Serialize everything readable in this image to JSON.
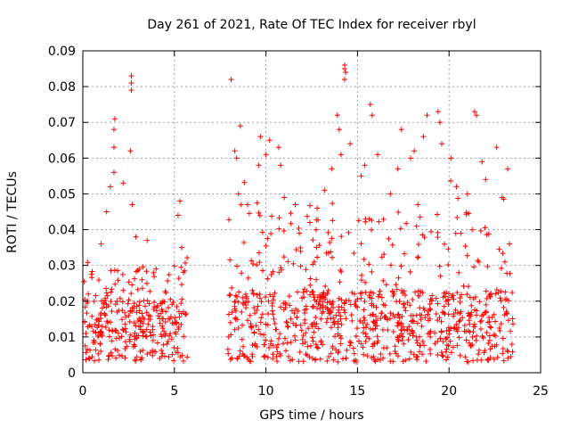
{
  "chart_data": {
    "type": "scatter",
    "title": "Day 261 of 2021, Rate Of TEC Index for receiver rbyl",
    "xlabel": "GPS time / hours",
    "ylabel": "ROTI / TECUs",
    "xlim": [
      0,
      25
    ],
    "ylim": [
      0,
      0.09
    ],
    "xticks": [
      "0",
      "5",
      "10",
      "15",
      "20",
      "25"
    ],
    "yticks": [
      "0",
      "0.01",
      "0.02",
      "0.03",
      "0.04",
      "0.05",
      "0.06",
      "0.07",
      "0.08",
      "0.09"
    ],
    "grid": true,
    "marker": "+",
    "color": "#ff0000",
    "series": [
      {
        "name": "ROTI",
        "segments": [
          {
            "start": 0.0,
            "end": 5.7,
            "baseline": 0.01,
            "peak": 0.03
          },
          {
            "start": 7.9,
            "end": 23.5,
            "baseline": 0.012,
            "peak": 0.045
          }
        ],
        "notable_points": [
          {
            "x": 0.3,
            "y": 0.022
          },
          {
            "x": 1.0,
            "y": 0.036
          },
          {
            "x": 1.3,
            "y": 0.045
          },
          {
            "x": 1.5,
            "y": 0.052
          },
          {
            "x": 1.7,
            "y": 0.056
          },
          {
            "x": 1.7,
            "y": 0.063
          },
          {
            "x": 1.7,
            "y": 0.068
          },
          {
            "x": 1.75,
            "y": 0.071
          },
          {
            "x": 2.2,
            "y": 0.053
          },
          {
            "x": 2.6,
            "y": 0.062
          },
          {
            "x": 2.65,
            "y": 0.083
          },
          {
            "x": 2.65,
            "y": 0.081
          },
          {
            "x": 2.65,
            "y": 0.079
          },
          {
            "x": 2.7,
            "y": 0.047
          },
          {
            "x": 2.9,
            "y": 0.038
          },
          {
            "x": 3.5,
            "y": 0.025
          },
          {
            "x": 4.0,
            "y": 0.029
          },
          {
            "x": 5.3,
            "y": 0.048
          },
          {
            "x": 5.2,
            "y": 0.044
          },
          {
            "x": 5.4,
            "y": 0.035
          },
          {
            "x": 8.1,
            "y": 0.082
          },
          {
            "x": 8.3,
            "y": 0.062
          },
          {
            "x": 8.4,
            "y": 0.06
          },
          {
            "x": 8.5,
            "y": 0.05
          },
          {
            "x": 8.6,
            "y": 0.069
          },
          {
            "x": 9.0,
            "y": 0.047
          },
          {
            "x": 9.6,
            "y": 0.058
          },
          {
            "x": 9.7,
            "y": 0.066
          },
          {
            "x": 10.0,
            "y": 0.061
          },
          {
            "x": 10.2,
            "y": 0.065
          },
          {
            "x": 10.7,
            "y": 0.063
          },
          {
            "x": 10.8,
            "y": 0.058
          },
          {
            "x": 11.0,
            "y": 0.049
          },
          {
            "x": 11.6,
            "y": 0.047
          },
          {
            "x": 12.4,
            "y": 0.042
          },
          {
            "x": 12.8,
            "y": 0.046
          },
          {
            "x": 13.2,
            "y": 0.051
          },
          {
            "x": 13.6,
            "y": 0.057
          },
          {
            "x": 13.9,
            "y": 0.072
          },
          {
            "x": 14.0,
            "y": 0.068
          },
          {
            "x": 14.1,
            "y": 0.061
          },
          {
            "x": 14.3,
            "y": 0.086
          },
          {
            "x": 14.3,
            "y": 0.085
          },
          {
            "x": 14.35,
            "y": 0.084
          },
          {
            "x": 14.3,
            "y": 0.082
          },
          {
            "x": 14.6,
            "y": 0.064
          },
          {
            "x": 15.2,
            "y": 0.055
          },
          {
            "x": 15.4,
            "y": 0.058
          },
          {
            "x": 15.7,
            "y": 0.075
          },
          {
            "x": 15.8,
            "y": 0.072
          },
          {
            "x": 16.1,
            "y": 0.061
          },
          {
            "x": 16.8,
            "y": 0.05
          },
          {
            "x": 17.2,
            "y": 0.057
          },
          {
            "x": 17.4,
            "y": 0.068
          },
          {
            "x": 17.9,
            "y": 0.06
          },
          {
            "x": 18.1,
            "y": 0.062
          },
          {
            "x": 18.3,
            "y": 0.047
          },
          {
            "x": 18.6,
            "y": 0.066
          },
          {
            "x": 18.8,
            "y": 0.072
          },
          {
            "x": 19.4,
            "y": 0.073
          },
          {
            "x": 19.5,
            "y": 0.07
          },
          {
            "x": 19.6,
            "y": 0.064
          },
          {
            "x": 20.1,
            "y": 0.06
          },
          {
            "x": 20.4,
            "y": 0.052
          },
          {
            "x": 21.0,
            "y": 0.05
          },
          {
            "x": 21.4,
            "y": 0.073
          },
          {
            "x": 21.5,
            "y": 0.072
          },
          {
            "x": 21.8,
            "y": 0.059
          },
          {
            "x": 22.0,
            "y": 0.054
          },
          {
            "x": 22.6,
            "y": 0.063
          },
          {
            "x": 22.9,
            "y": 0.049
          },
          {
            "x": 23.2,
            "y": 0.057
          },
          {
            "x": 23.3,
            "y": 0.036
          }
        ]
      }
    ]
  }
}
